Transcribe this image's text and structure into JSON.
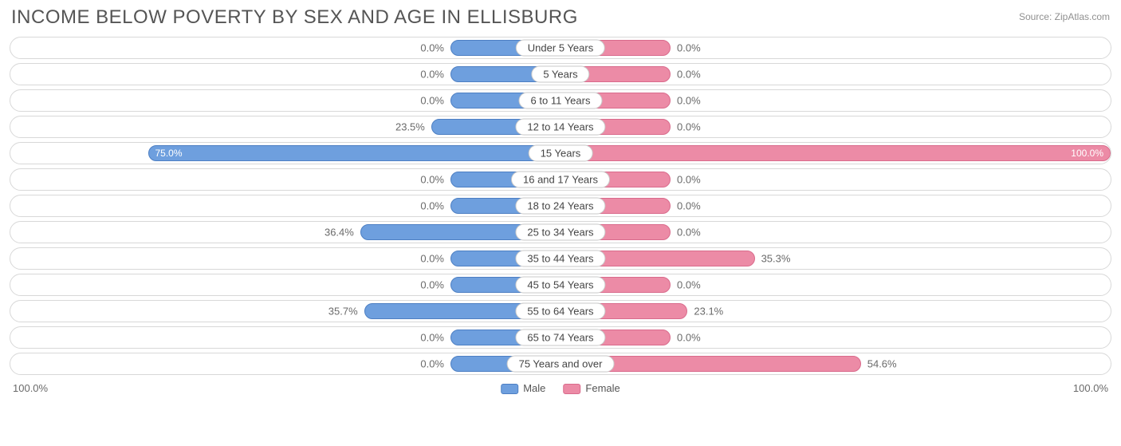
{
  "title": "INCOME BELOW POVERTY BY SEX AND AGE IN ELLISBURG",
  "source": "Source: ZipAtlas.com",
  "axis": {
    "left": "100.0%",
    "right": "100.0%",
    "max": 100.0
  },
  "legend": {
    "male": "Male",
    "female": "Female"
  },
  "colors": {
    "male_fill": "#6e9fde",
    "male_border": "#4d7fc3",
    "female_fill": "#ec8ba6",
    "female_border": "#d96b8c",
    "track_border": "#d8d8d8",
    "text_muted": "#6a6a6a",
    "title_color": "#555555",
    "background": "#ffffff"
  },
  "min_bar_pct": 20.0,
  "rows": [
    {
      "category": "Under 5 Years",
      "male": 0.0,
      "female": 0.0,
      "male_label": "0.0%",
      "female_label": "0.0%"
    },
    {
      "category": "5 Years",
      "male": 0.0,
      "female": 0.0,
      "male_label": "0.0%",
      "female_label": "0.0%"
    },
    {
      "category": "6 to 11 Years",
      "male": 0.0,
      "female": 0.0,
      "male_label": "0.0%",
      "female_label": "0.0%"
    },
    {
      "category": "12 to 14 Years",
      "male": 23.5,
      "female": 0.0,
      "male_label": "23.5%",
      "female_label": "0.0%"
    },
    {
      "category": "15 Years",
      "male": 75.0,
      "female": 100.0,
      "male_label": "75.0%",
      "female_label": "100.0%"
    },
    {
      "category": "16 and 17 Years",
      "male": 0.0,
      "female": 0.0,
      "male_label": "0.0%",
      "female_label": "0.0%"
    },
    {
      "category": "18 to 24 Years",
      "male": 0.0,
      "female": 0.0,
      "male_label": "0.0%",
      "female_label": "0.0%"
    },
    {
      "category": "25 to 34 Years",
      "male": 36.4,
      "female": 0.0,
      "male_label": "36.4%",
      "female_label": "0.0%"
    },
    {
      "category": "35 to 44 Years",
      "male": 0.0,
      "female": 35.3,
      "male_label": "0.0%",
      "female_label": "35.3%"
    },
    {
      "category": "45 to 54 Years",
      "male": 0.0,
      "female": 0.0,
      "male_label": "0.0%",
      "female_label": "0.0%"
    },
    {
      "category": "55 to 64 Years",
      "male": 35.7,
      "female": 23.1,
      "male_label": "35.7%",
      "female_label": "23.1%"
    },
    {
      "category": "65 to 74 Years",
      "male": 0.0,
      "female": 0.0,
      "male_label": "0.0%",
      "female_label": "0.0%"
    },
    {
      "category": "75 Years and over",
      "male": 0.0,
      "female": 54.6,
      "male_label": "0.0%",
      "female_label": "54.6%"
    }
  ],
  "chart_type": "diverging-bar"
}
